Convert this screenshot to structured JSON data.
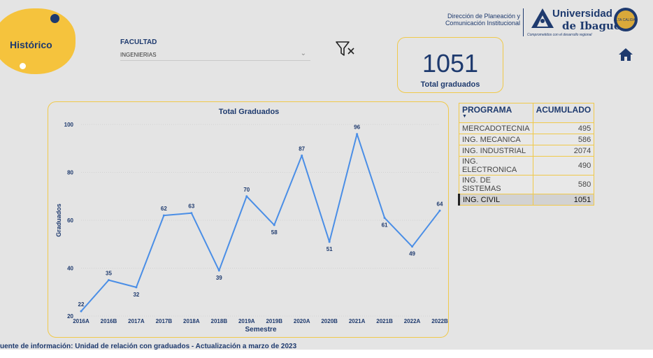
{
  "header": {
    "section_title": "Histórico",
    "org_line1": "Dirección de Planeación y",
    "org_line2": "Comunicación Institucional",
    "uni_line1": "Universidad",
    "uni_line2": "de Ibagué",
    "uni_tagline": "Comprometidos con el desarrollo regional",
    "seal_text": "ALTA CALIDAD"
  },
  "filter": {
    "label": "FACULTAD",
    "value": "INGENIERIAS",
    "clear_icon": "clear-filter-icon"
  },
  "kpi": {
    "value": "1051",
    "caption": "Total graduados"
  },
  "chart_data": {
    "type": "line",
    "title": "Total Graduados",
    "xlabel": "Semestre",
    "ylabel": "Graduados",
    "categories": [
      "2016A",
      "2016B",
      "2017A",
      "2017B",
      "2018A",
      "2018B",
      "2019A",
      "2019B",
      "2020A",
      "2020B",
      "2021A",
      "2021B",
      "2022A",
      "2022B"
    ],
    "values": [
      22,
      35,
      32,
      62,
      63,
      39,
      70,
      58,
      87,
      51,
      96,
      61,
      49,
      64
    ],
    "ylim": [
      20,
      100
    ],
    "yticks": [
      20,
      40,
      60,
      80,
      100
    ],
    "grid": true,
    "color": "#4a8ee6"
  },
  "table": {
    "headers": [
      "PROGRAMA",
      "ACUMULADO"
    ],
    "rows": [
      {
        "programa": "MERCADOTECNIA",
        "acumulado": "495"
      },
      {
        "programa": "ING. MECANICA",
        "acumulado": "586"
      },
      {
        "programa": "ING. INDUSTRIAL",
        "acumulado": "2074"
      },
      {
        "programa": "ING. ELECTRONICA",
        "acumulado": "490"
      },
      {
        "programa": "ING. DE SISTEMAS",
        "acumulado": "580"
      },
      {
        "programa": "ING. CIVIL",
        "acumulado": "1051"
      }
    ],
    "selected_index": 5
  },
  "footer": {
    "text": "uente de información:  Unidad de relación con graduados - Actualización a marzo de 2023"
  },
  "icons": {
    "home": "home-icon"
  }
}
